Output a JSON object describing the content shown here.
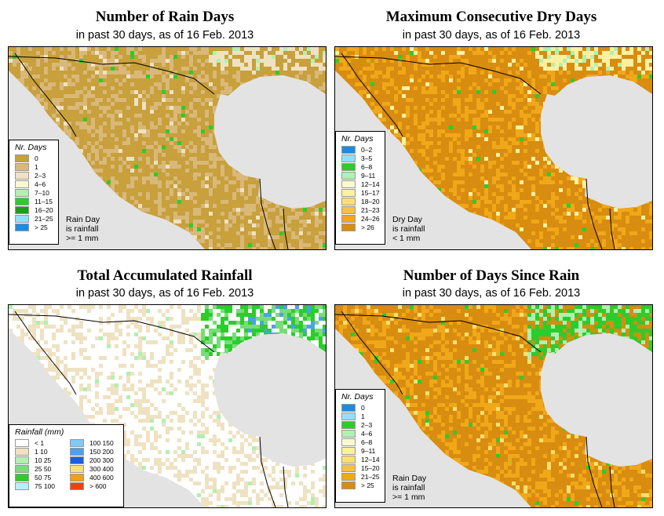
{
  "panels": [
    {
      "title": "Number of Rain Days",
      "subtitle": "in past 30 days, as of  16 Feb. 2013",
      "legend_title": "Nr. Days",
      "legend": [
        {
          "label": "0",
          "color": "#c8a03c"
        },
        {
          "label": "1",
          "color": "#d9b87a"
        },
        {
          "label": "2–3",
          "color": "#efe2c2"
        },
        {
          "label": "4–6",
          "color": "#fafad0"
        },
        {
          "label": "7–10",
          "color": "#b0f0b0"
        },
        {
          "label": "11–15",
          "color": "#2ccc2c"
        },
        {
          "label": "16–20",
          "color": "#18a018"
        },
        {
          "label": "21–25",
          "color": "#90e0f8"
        },
        {
          "label": "> 25",
          "color": "#1c8ce0"
        }
      ],
      "note": [
        "Rain Day",
        "is rainfall",
        ">= 1 mm"
      ],
      "palette": {
        "land_main": "#c8a03c",
        "land_alt": "#d9b87a",
        "land_light": "#efe2c2",
        "spark": "#2ccc2c",
        "spark2": "#b0f0b0",
        "water": "#e3e3e3"
      }
    },
    {
      "title": "Maximum Consecutive Dry Days",
      "subtitle": "in past 30 days, as of  16 Feb. 2013",
      "legend_title": "Nr. Days",
      "legend": [
        {
          "label": "0–2",
          "color": "#1c8ce0"
        },
        {
          "label": "3–5",
          "color": "#90e0f8"
        },
        {
          "label": "6–8",
          "color": "#2ccc2c"
        },
        {
          "label": "9–11",
          "color": "#b0f0b0"
        },
        {
          "label": "12–14",
          "color": "#fafad0"
        },
        {
          "label": "15–17",
          "color": "#fdf0a0"
        },
        {
          "label": "18–20",
          "color": "#fde070"
        },
        {
          "label": "21–23",
          "color": "#f8c040"
        },
        {
          "label": "24–26",
          "color": "#f0a818"
        },
        {
          "label": "> 26",
          "color": "#d88c10"
        }
      ],
      "note": [
        "Dry Day",
        "is rainfall",
        "< 1 mm"
      ],
      "palette": {
        "land_main": "#d88c10",
        "land_alt": "#f0a818",
        "land_light": "#fdf0a0",
        "spark": "#2ccc2c",
        "spark2": "#b0f0b0",
        "water": "#e3e3e3"
      }
    },
    {
      "title": "Total Accumulated Rainfall",
      "subtitle": "in past 30 days, as of  16 Feb. 2013",
      "legend_title": "Rainfall (mm)",
      "legend_left": [
        {
          "label": "< 1",
          "color": "#ffffff"
        },
        {
          "label": "1    10",
          "color": "#efe2c2"
        },
        {
          "label": "10    25",
          "color": "#b0f0b0"
        },
        {
          "label": "25    50",
          "color": "#78dc78"
        },
        {
          "label": "50    75",
          "color": "#2ccc2c"
        },
        {
          "label": "75   100",
          "color": "#b8f0f8"
        }
      ],
      "legend_right": [
        {
          "label": "100  150",
          "color": "#80c8f8"
        },
        {
          "label": "150  200",
          "color": "#4ca0f0"
        },
        {
          "label": "200  300",
          "color": "#1c60e0"
        },
        {
          "label": "300  400",
          "color": "#fde070"
        },
        {
          "label": "400  600",
          "color": "#f0a018"
        },
        {
          "label": "> 600",
          "color": "#f04010"
        }
      ],
      "palette": {
        "land_main": "#ffffff",
        "land_alt": "#efe2c2",
        "land_light": "#ffffff",
        "spark": "#78dc78",
        "spark2": "#b0f0b0",
        "water": "#e3e3e3"
      }
    },
    {
      "title": "Number of Days Since Rain",
      "subtitle": "in past 30 days, as of  16 Feb. 2013",
      "legend_title": "Nr. Days",
      "legend": [
        {
          "label": "0",
          "color": "#1c8ce0"
        },
        {
          "label": "1",
          "color": "#90e0f8"
        },
        {
          "label": "2–3",
          "color": "#2ccc2c"
        },
        {
          "label": "4–6",
          "color": "#b0f0b0"
        },
        {
          "label": "6–8",
          "color": "#fafad0"
        },
        {
          "label": "9–11",
          "color": "#fdf0a0"
        },
        {
          "label": "12–14",
          "color": "#fde070"
        },
        {
          "label": "15–20",
          "color": "#f8c040"
        },
        {
          "label": "21–25",
          "color": "#f0a818"
        },
        {
          "label": "> 25",
          "color": "#d88c10"
        }
      ],
      "note": [
        "Rain Day",
        "is rainfall",
        ">= 1 mm"
      ],
      "palette": {
        "land_main": "#d88c10",
        "land_alt": "#f0a818",
        "land_light": "#fde070",
        "spark": "#2ccc2c",
        "spark2": "#b0f0b0",
        "water": "#e3e3e3"
      }
    }
  ]
}
